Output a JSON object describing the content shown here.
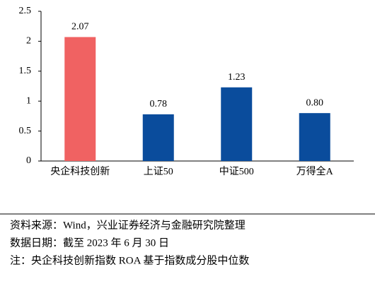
{
  "chart_data": {
    "type": "bar",
    "categories": [
      "央企科技创新",
      "上证50",
      "中证500",
      "万得全A"
    ],
    "values": [
      2.07,
      0.78,
      1.23,
      0.8
    ],
    "value_labels": [
      "2.07",
      "0.78",
      "1.23",
      "0.80"
    ],
    "colors": [
      "#f06262",
      "#0a4c9c",
      "#0a4c9c",
      "#0a4c9c"
    ],
    "ylim": [
      0,
      2.5
    ],
    "yticks": [
      0,
      0.5,
      1,
      1.5,
      2,
      2.5
    ],
    "grid": false,
    "notes": [
      "资料来源：Wind，兴业证券经济与金融研究院整理",
      "数据日期：截至 2023 年 6 月 30 日",
      "注：央企科技创新指数 ROA 基于指数成分股中位数"
    ]
  }
}
